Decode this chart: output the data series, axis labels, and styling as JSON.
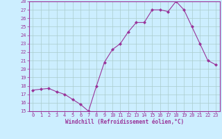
{
  "x": [
    0,
    1,
    2,
    3,
    4,
    5,
    6,
    7,
    8,
    9,
    10,
    11,
    12,
    13,
    14,
    15,
    16,
    17,
    18,
    19,
    20,
    21,
    22,
    23
  ],
  "y": [
    17.5,
    17.6,
    17.7,
    17.3,
    17.0,
    16.4,
    15.8,
    15.0,
    18.0,
    20.8,
    22.3,
    23.0,
    24.4,
    25.5,
    25.5,
    27.0,
    27.0,
    26.8,
    28.0,
    27.0,
    25.0,
    23.0,
    21.0,
    20.5
  ],
  "line_color": "#993399",
  "marker": "D",
  "marker_size": 2.0,
  "bg_color": "#cceeff",
  "grid_color": "#aacccc",
  "xlabel": "Windchill (Refroidissement éolien,°C)",
  "xlabel_color": "#993399",
  "tick_color": "#993399",
  "spine_color": "#993399",
  "ylim": [
    15,
    28
  ],
  "xlim": [
    -0.5,
    23.5
  ],
  "yticks": [
    15,
    16,
    17,
    18,
    19,
    20,
    21,
    22,
    23,
    24,
    25,
    26,
    27,
    28
  ],
  "xticks": [
    0,
    1,
    2,
    3,
    4,
    5,
    6,
    7,
    8,
    9,
    10,
    11,
    12,
    13,
    14,
    15,
    16,
    17,
    18,
    19,
    20,
    21,
    22,
    23
  ]
}
